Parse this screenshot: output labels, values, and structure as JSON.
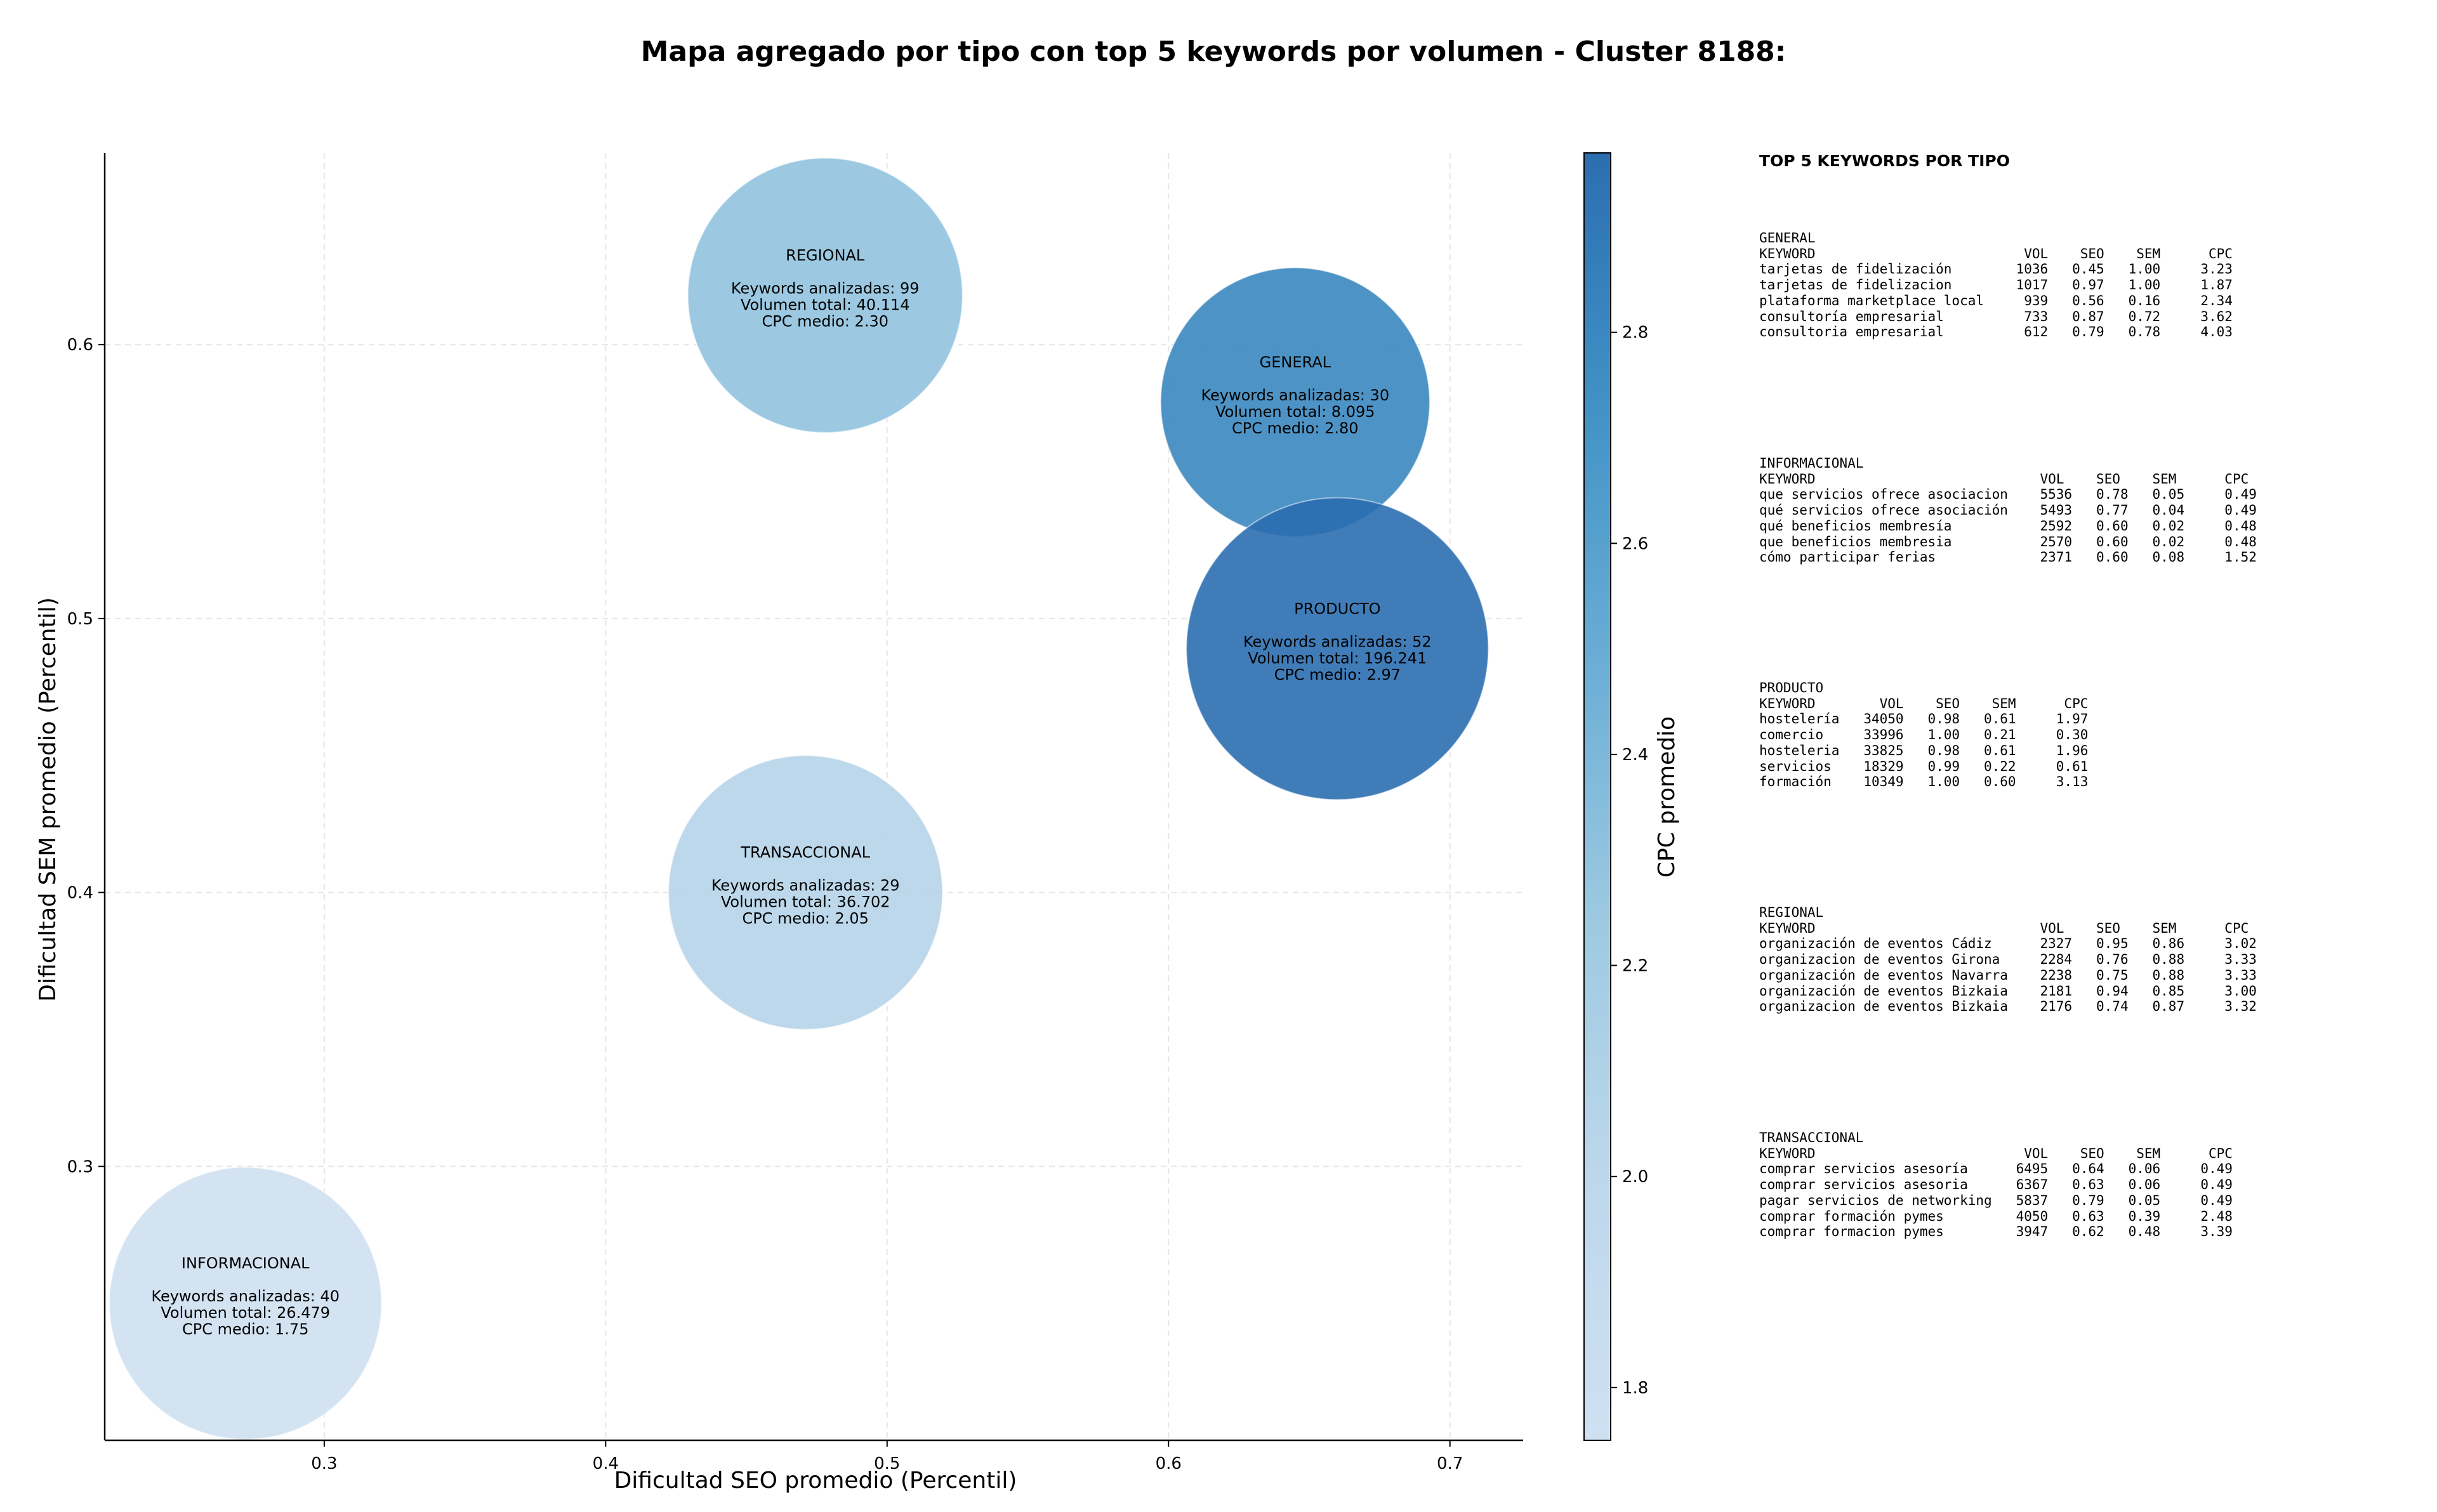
{
  "chart_data": {
    "type": "bubble",
    "title": "Mapa agregado por tipo con top 5 keywords por volumen - Cluster 8188:",
    "xlabel": "Dificultad SEO promedio (Percentil)",
    "ylabel": "Dificultad SEM promedio (Percentil)",
    "colorbar_label": "CPC promedio",
    "xlim": [
      0.222,
      0.726
    ],
    "ylim": [
      0.2,
      0.67
    ],
    "x_ticks": [
      0.3,
      0.4,
      0.5,
      0.6,
      0.7
    ],
    "x_tick_labels": [
      "0.3",
      "0.4",
      "0.5",
      "0.6",
      "0.7"
    ],
    "y_ticks": [
      0.3,
      0.4,
      0.5,
      0.6
    ],
    "y_tick_labels": [
      "0.3",
      "0.4",
      "0.5",
      "0.6"
    ],
    "colorbar_range": [
      1.75,
      2.97
    ],
    "colorbar_ticks": [
      1.8,
      2.0,
      2.2,
      2.4,
      2.6,
      2.8
    ],
    "colorbar_tick_labels": [
      "1.8",
      "2.0",
      "2.2",
      "2.4",
      "2.6",
      "2.8"
    ],
    "grid": true,
    "points": [
      {
        "name": "REGIONAL",
        "x": 0.478,
        "y": 0.618,
        "cpc": 2.3,
        "size": 40114,
        "label_lines": [
          "REGIONAL",
          "",
          "Keywords analizadas: 99",
          "Volumen total: 40.114",
          "CPC medio: 2.30"
        ]
      },
      {
        "name": "GENERAL",
        "x": 0.645,
        "y": 0.579,
        "cpc": 2.8,
        "size": 8095,
        "label_lines": [
          "GENERAL",
          "",
          "Keywords analizadas: 30",
          "Volumen total: 8.095",
          "CPC medio: 2.80"
        ]
      },
      {
        "name": "PRODUCTO",
        "x": 0.66,
        "y": 0.489,
        "cpc": 2.97,
        "size": 196241,
        "label_lines": [
          "PRODUCTO",
          "",
          "Keywords analizadas: 52",
          "Volumen total: 196.241",
          "CPC medio: 2.97"
        ]
      },
      {
        "name": "TRANSACCIONAL",
        "x": 0.471,
        "y": 0.4,
        "cpc": 2.05,
        "size": 36702,
        "label_lines": [
          "TRANSACCIONAL",
          "",
          "Keywords analizadas: 29",
          "Volumen total: 36.702",
          "CPC medio: 2.05"
        ]
      },
      {
        "name": "INFORMACIONAL",
        "x": 0.272,
        "y": 0.25,
        "cpc": 1.75,
        "size": 26479,
        "label_lines": [
          "INFORMACIONAL",
          "",
          "Keywords analizadas: 40",
          "Volumen total: 26.479",
          "CPC medio: 1.75"
        ]
      }
    ]
  },
  "side_panel": {
    "title": "TOP 5 KEYWORDS POR TIPO",
    "groups": [
      {
        "id": "general",
        "text": "GENERAL\nKEYWORD                          VOL    SEO    SEM      CPC\ntarjetas de fidelización        1036   0.45   1.00     3.23\ntarjetas de fidelizacion        1017   0.97   1.00     1.87\nplataforma marketplace local     939   0.56   0.16     2.34\nconsultoría empresarial          733   0.87   0.72     3.62\nconsultoria empresarial          612   0.79   0.78     4.03"
      },
      {
        "id": "informacional",
        "text": "INFORMACIONAL\nKEYWORD                            VOL    SEO    SEM      CPC\nque servicios ofrece asociacion    5536   0.78   0.05     0.49\nqué servicios ofrece asociación    5493   0.77   0.04     0.49\nqué beneficios membresía           2592   0.60   0.02     0.48\nque beneficios membresia           2570   0.60   0.02     0.48\ncómo participar ferias             2371   0.60   0.08     1.52"
      },
      {
        "id": "producto",
        "text": "PRODUCTO\nKEYWORD        VOL    SEO    SEM      CPC\nhostelería   34050   0.98   0.61     1.97\ncomercio     33996   1.00   0.21     0.30\nhosteleria   33825   0.98   0.61     1.96\nservicios    18329   0.99   0.22     0.61\nformación    10349   1.00   0.60     3.13"
      },
      {
        "id": "regional",
        "text": "REGIONAL\nKEYWORD                            VOL    SEO    SEM      CPC\norganización de eventos Cádiz      2327   0.95   0.86     3.02\norganizacion de eventos Girona     2284   0.76   0.88     3.33\norganización de eventos Navarra    2238   0.75   0.88     3.33\norganización de eventos Bizkaia    2181   0.94   0.85     3.00\norganizacion de eventos Bizkaia    2176   0.74   0.87     3.32"
      },
      {
        "id": "transaccional",
        "text": "TRANSACCIONAL\nKEYWORD                          VOL    SEO    SEM      CPC\ncomprar servicios asesoría      6495   0.64   0.06     0.49\ncomprar servicios asesoria      6367   0.63   0.06     0.49\npagar servicios de networking   5837   0.79   0.05     0.49\ncomprar formación pymes         4050   0.63   0.39     2.48\ncomprar formacion pymes         3947   0.62   0.48     3.39"
      }
    ]
  }
}
